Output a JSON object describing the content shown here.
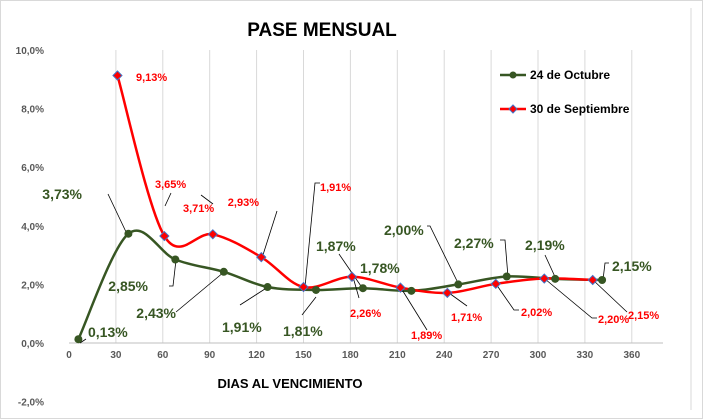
{
  "chart_data": {
    "type": "line",
    "title": "PASE MENSUAL",
    "xlabel": "DIAS AL VENCIMIENTO",
    "ylabel": "",
    "xlim": [
      0,
      375
    ],
    "ylim": [
      -2,
      10
    ],
    "x_ticks": [
      "0",
      "30",
      "60",
      "90",
      "120",
      "150",
      "180",
      "210",
      "240",
      "270",
      "300",
      "330",
      "360"
    ],
    "y_ticks": [
      "-2,0%",
      "0,0%",
      "2,0%",
      "4,0%",
      "6,0%",
      "8,0%",
      "10,0%"
    ],
    "grid": "vertical",
    "legend_position": "top-right",
    "series": [
      {
        "name": "24 de Octubre",
        "color": "#375623",
        "x": [
          6,
          38,
          68,
          99,
          127,
          158,
          188,
          219,
          249,
          280,
          311,
          341
        ],
        "y": [
          0.13,
          3.73,
          2.85,
          2.43,
          1.91,
          1.81,
          1.87,
          1.78,
          2.0,
          2.27,
          2.19,
          2.15
        ],
        "labels": [
          "0,13%",
          "3,73%",
          "2,85%",
          "2,43%",
          "1,91%",
          "1,81%",
          "1,87%",
          "1,78%",
          "2,00%",
          "2,27%",
          "2,19%",
          "2,15%"
        ]
      },
      {
        "name": "30 de Septiembre",
        "color": "#FF0000",
        "x": [
          31,
          61,
          92,
          123,
          150,
          181,
          212,
          242,
          273,
          304,
          335
        ],
        "y": [
          9.13,
          3.65,
          3.71,
          2.93,
          1.91,
          2.26,
          1.89,
          1.71,
          2.02,
          2.2,
          2.15
        ],
        "labels": [
          "9,13%",
          "3,65%",
          "3,71%",
          "2,93%",
          "1,91%",
          "2,26%",
          "1,89%",
          "1,71%",
          "2,02%",
          "2,20%",
          "2,15%"
        ]
      }
    ]
  }
}
